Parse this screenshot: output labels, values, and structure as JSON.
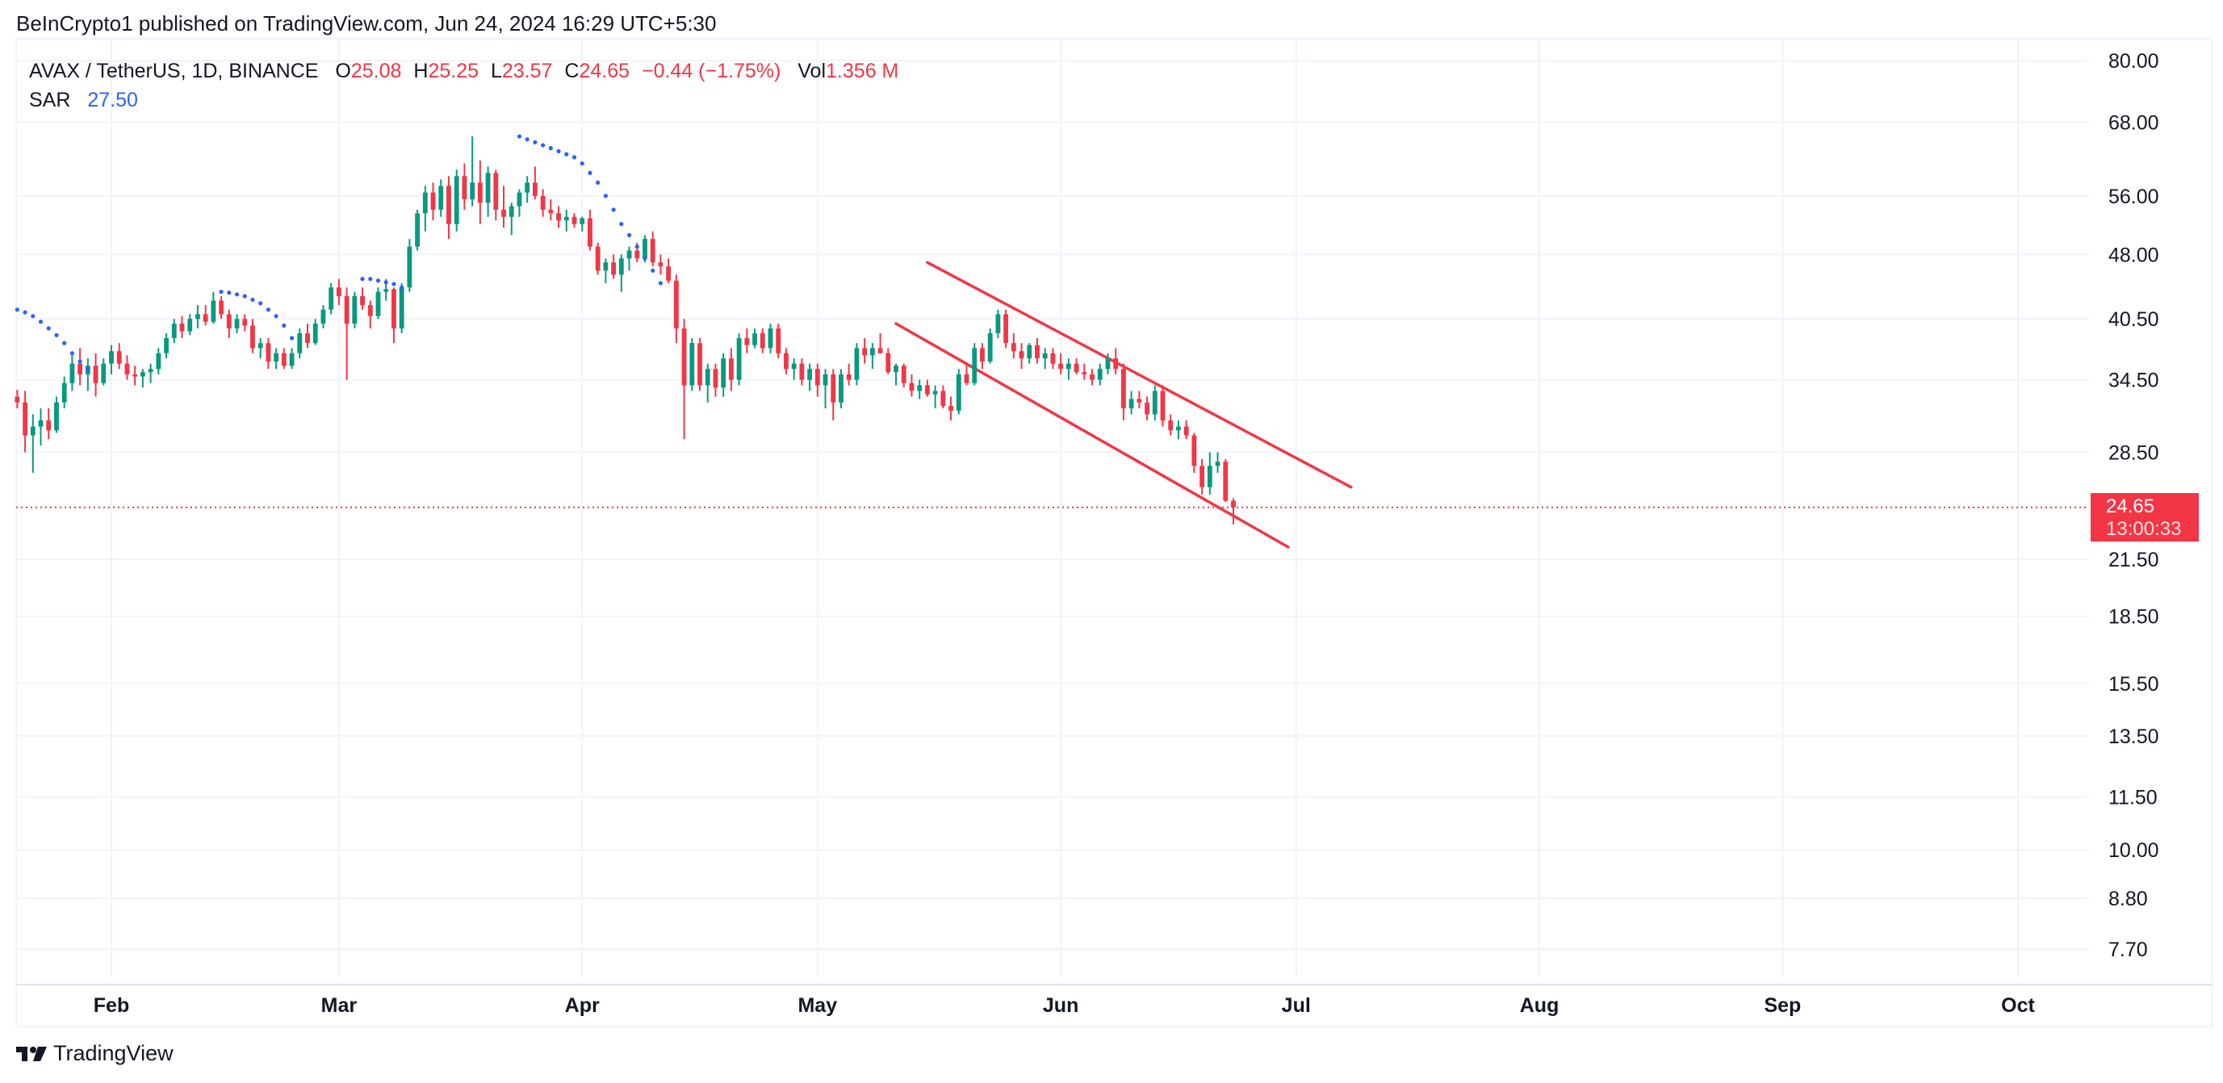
{
  "header": {
    "published_by": "BeInCrypto1 published on TradingView.com, Jun 24, 2024 16:29 UTC+5:30"
  },
  "legend": {
    "symbol": "AVAX / TetherUS, 1D, BINANCE",
    "open_label": "O",
    "open": "25.08",
    "high_label": "H",
    "high": "25.25",
    "low_label": "L",
    "low": "23.57",
    "close_label": "C",
    "close": "24.65",
    "change": "−0.44 (−1.75%)",
    "vol_label": "Vol",
    "vol": "1.356 M",
    "sar_label": "SAR",
    "sar": "27.50"
  },
  "price_tag": {
    "price": "24.65",
    "countdown": "13:00:33"
  },
  "footer": {
    "brand": "TradingView"
  },
  "colors": {
    "up": "#089981",
    "down": "#f23645",
    "sar": "#2962ff",
    "channel": "#f23645",
    "grid": "#f0f3fa"
  },
  "chart_data": {
    "type": "candlestick",
    "symbol": "AVAX / TetherUS",
    "interval": "1D",
    "y_scale": "log",
    "y_ticks": [
      80.0,
      68.0,
      56.0,
      48.0,
      40.5,
      34.5,
      28.5,
      21.5,
      18.5,
      15.5,
      13.5,
      11.5,
      10.0,
      8.8,
      7.7
    ],
    "y_tick_labels": [
      "80.00",
      "68.00",
      "56.00",
      "48.00",
      "40.50",
      "34.50",
      "28.50",
      "21.50",
      "18.50",
      "15.50",
      "13.50",
      "11.50",
      "10.00",
      "8.80",
      "7.70"
    ],
    "x_tick_labels": [
      "Feb",
      "Mar",
      "Apr",
      "May",
      "Jun",
      "Jul",
      "Aug",
      "Sep",
      "Oct"
    ],
    "x_tick_dates": [
      "2024-02-01",
      "2024-03-01",
      "2024-04-01",
      "2024-05-01",
      "2024-06-01",
      "2024-07-01",
      "2024-08-01",
      "2024-09-01",
      "2024-10-01"
    ],
    "x_range": [
      "2024-01-20",
      "2024-10-20"
    ],
    "last_price": 24.65,
    "candles_start": "2024-01-20",
    "candles_ohlc": [
      [
        33.0,
        33.6,
        32.0,
        32.5
      ],
      [
        32.5,
        33.5,
        28.5,
        29.8
      ],
      [
        29.8,
        31.5,
        27.0,
        30.5
      ],
      [
        30.5,
        32.0,
        29.0,
        31.0
      ],
      [
        31.0,
        32.0,
        29.5,
        30.2
      ],
      [
        30.2,
        33.0,
        30.0,
        32.5
      ],
      [
        32.5,
        34.8,
        32.0,
        34.2
      ],
      [
        34.2,
        36.8,
        33.5,
        36.0
      ],
      [
        36.0,
        37.5,
        34.0,
        35.0
      ],
      [
        35.0,
        36.5,
        33.5,
        35.8
      ],
      [
        35.8,
        37.0,
        33.0,
        34.2
      ],
      [
        34.2,
        36.5,
        34.0,
        36.0
      ],
      [
        36.0,
        37.8,
        35.0,
        37.2
      ],
      [
        37.2,
        38.0,
        35.5,
        36.0
      ],
      [
        36.0,
        36.8,
        34.5,
        35.0
      ],
      [
        35.0,
        35.8,
        34.0,
        34.8
      ],
      [
        34.8,
        35.5,
        33.8,
        35.2
      ],
      [
        35.2,
        36.0,
        34.2,
        35.5
      ],
      [
        35.5,
        37.5,
        35.0,
        37.0
      ],
      [
        37.0,
        39.0,
        36.5,
        38.5
      ],
      [
        38.5,
        40.5,
        38.0,
        40.0
      ],
      [
        40.0,
        40.8,
        38.5,
        39.2
      ],
      [
        39.2,
        41.0,
        38.8,
        40.5
      ],
      [
        40.5,
        42.0,
        39.5,
        41.0
      ],
      [
        41.0,
        42.0,
        39.8,
        40.2
      ],
      [
        40.2,
        43.5,
        40.0,
        42.5
      ],
      [
        42.5,
        43.0,
        40.5,
        41.0
      ],
      [
        41.0,
        41.5,
        38.5,
        39.5
      ],
      [
        39.5,
        41.0,
        39.0,
        40.5
      ],
      [
        40.5,
        41.0,
        39.2,
        39.8
      ],
      [
        39.8,
        40.5,
        37.0,
        37.5
      ],
      [
        37.5,
        38.5,
        36.5,
        38.0
      ],
      [
        38.0,
        38.5,
        35.5,
        36.2
      ],
      [
        36.2,
        37.5,
        35.5,
        37.0
      ],
      [
        37.0,
        37.5,
        35.5,
        35.8
      ],
      [
        35.8,
        37.5,
        35.5,
        37.0
      ],
      [
        37.0,
        39.5,
        36.5,
        39.0
      ],
      [
        39.0,
        40.0,
        37.5,
        38.0
      ],
      [
        38.0,
        40.5,
        37.8,
        40.0
      ],
      [
        40.0,
        42.0,
        39.5,
        41.5
      ],
      [
        41.5,
        44.5,
        41.0,
        44.0
      ],
      [
        44.0,
        45.0,
        42.0,
        43.0
      ],
      [
        43.0,
        44.0,
        34.5,
        40.0
      ],
      [
        40.0,
        43.5,
        39.5,
        43.0
      ],
      [
        43.0,
        44.0,
        41.5,
        42.0
      ],
      [
        42.0,
        42.5,
        39.5,
        40.8
      ],
      [
        40.8,
        44.0,
        40.5,
        43.5
      ],
      [
        43.5,
        45.0,
        42.5,
        43.8
      ],
      [
        43.8,
        44.0,
        38.0,
        39.5
      ],
      [
        39.5,
        44.5,
        39.0,
        44.0
      ],
      [
        44.0,
        50.0,
        43.5,
        49.0
      ],
      [
        49.0,
        54.0,
        48.5,
        53.5
      ],
      [
        53.5,
        57.5,
        51.0,
        56.5
      ],
      [
        56.5,
        58.0,
        52.5,
        54.0
      ],
      [
        54.0,
        58.5,
        53.0,
        57.5
      ],
      [
        57.5,
        59.0,
        50.0,
        52.0
      ],
      [
        52.0,
        60.0,
        51.0,
        59.0
      ],
      [
        59.0,
        61.0,
        54.0,
        55.5
      ],
      [
        55.5,
        65.5,
        54.5,
        58.0
      ],
      [
        58.0,
        61.5,
        52.0,
        55.0
      ],
      [
        55.0,
        60.5,
        53.0,
        59.5
      ],
      [
        59.5,
        60.0,
        52.5,
        54.0
      ],
      [
        54.0,
        57.5,
        51.5,
        53.0
      ],
      [
        53.0,
        55.0,
        50.5,
        54.5
      ],
      [
        54.5,
        57.0,
        53.0,
        56.5
      ],
      [
        56.5,
        59.0,
        55.0,
        58.0
      ],
      [
        58.0,
        60.5,
        55.5,
        56.0
      ],
      [
        56.0,
        57.0,
        53.0,
        54.0
      ],
      [
        54.0,
        55.5,
        52.5,
        53.5
      ],
      [
        53.5,
        54.5,
        51.5,
        52.5
      ],
      [
        52.5,
        54.0,
        51.0,
        53.0
      ],
      [
        53.0,
        53.5,
        51.5,
        52.0
      ],
      [
        52.0,
        53.0,
        51.0,
        52.8
      ],
      [
        52.8,
        54.0,
        48.5,
        49.0
      ],
      [
        49.0,
        49.5,
        45.5,
        46.0
      ],
      [
        46.0,
        47.5,
        44.5,
        47.0
      ],
      [
        47.0,
        48.0,
        45.0,
        45.5
      ],
      [
        45.5,
        48.0,
        43.5,
        47.5
      ],
      [
        47.5,
        49.0,
        46.0,
        48.5
      ],
      [
        48.5,
        49.5,
        47.0,
        47.5
      ],
      [
        47.5,
        50.5,
        47.0,
        50.0
      ],
      [
        50.0,
        51.0,
        46.5,
        47.0
      ],
      [
        47.0,
        48.0,
        45.5,
        46.5
      ],
      [
        46.5,
        47.5,
        44.5,
        44.8
      ],
      [
        44.8,
        45.5,
        38.0,
        39.5
      ],
      [
        39.5,
        40.5,
        29.5,
        34.0
      ],
      [
        34.0,
        38.5,
        33.5,
        38.0
      ],
      [
        38.0,
        38.5,
        33.5,
        34.0
      ],
      [
        34.0,
        36.0,
        32.5,
        35.5
      ],
      [
        35.5,
        36.0,
        33.0,
        33.8
      ],
      [
        33.8,
        37.0,
        33.0,
        36.5
      ],
      [
        36.5,
        37.5,
        33.5,
        34.5
      ],
      [
        34.5,
        39.0,
        34.0,
        38.5
      ],
      [
        38.5,
        39.5,
        37.0,
        37.8
      ],
      [
        37.8,
        39.5,
        37.5,
        39.0
      ],
      [
        39.0,
        39.5,
        37.0,
        37.5
      ],
      [
        37.5,
        40.0,
        37.0,
        39.5
      ],
      [
        39.5,
        40.0,
        36.5,
        37.0
      ],
      [
        37.0,
        37.5,
        35.0,
        35.5
      ],
      [
        35.5,
        36.5,
        34.5,
        36.0
      ],
      [
        36.0,
        36.5,
        34.0,
        34.5
      ],
      [
        34.5,
        36.0,
        33.5,
        35.5
      ],
      [
        35.5,
        36.0,
        33.0,
        34.0
      ],
      [
        34.0,
        35.5,
        32.0,
        35.0
      ],
      [
        35.0,
        35.5,
        31.0,
        32.5
      ],
      [
        32.5,
        35.5,
        32.0,
        35.0
      ],
      [
        35.0,
        36.0,
        34.0,
        34.5
      ],
      [
        34.5,
        38.0,
        34.0,
        37.5
      ],
      [
        37.5,
        38.5,
        36.0,
        36.8
      ],
      [
        36.8,
        38.0,
        35.5,
        37.5
      ],
      [
        37.5,
        39.0,
        37.0,
        37.0
      ],
      [
        37.0,
        37.5,
        35.0,
        35.2
      ],
      [
        35.2,
        36.0,
        34.0,
        35.8
      ],
      [
        35.8,
        36.0,
        33.8,
        34.2
      ],
      [
        34.2,
        35.0,
        33.0,
        33.5
      ],
      [
        33.5,
        34.5,
        32.8,
        34.0
      ],
      [
        34.0,
        34.5,
        33.0,
        33.2
      ],
      [
        33.2,
        34.0,
        32.0,
        33.5
      ],
      [
        33.5,
        34.0,
        32.0,
        32.2
      ],
      [
        32.2,
        33.0,
        31.0,
        31.8
      ],
      [
        31.8,
        35.5,
        31.5,
        35.0
      ],
      [
        35.0,
        36.0,
        34.0,
        34.2
      ],
      [
        34.2,
        38.0,
        34.0,
        37.5
      ],
      [
        37.5,
        38.0,
        35.5,
        36.2
      ],
      [
        36.2,
        39.5,
        36.0,
        39.0
      ],
      [
        39.0,
        41.5,
        38.5,
        41.0
      ],
      [
        41.0,
        41.5,
        37.5,
        38.0
      ],
      [
        38.0,
        39.0,
        36.5,
        37.2
      ],
      [
        37.2,
        38.0,
        35.5,
        36.5
      ],
      [
        36.5,
        38.0,
        36.0,
        37.8
      ],
      [
        37.8,
        38.5,
        36.0,
        36.5
      ],
      [
        36.5,
        37.5,
        35.5,
        37.0
      ],
      [
        37.0,
        37.5,
        35.5,
        36.0
      ],
      [
        36.0,
        37.0,
        35.0,
        35.5
      ],
      [
        35.5,
        36.5,
        34.5,
        36.0
      ],
      [
        36.0,
        36.5,
        35.0,
        35.2
      ],
      [
        35.2,
        36.0,
        34.5,
        35.0
      ],
      [
        35.0,
        35.5,
        34.0,
        34.5
      ],
      [
        34.5,
        36.0,
        34.0,
        35.5
      ],
      [
        35.5,
        37.0,
        35.0,
        36.5
      ],
      [
        36.5,
        37.5,
        35.0,
        35.5
      ],
      [
        35.5,
        36.0,
        31.0,
        32.0
      ],
      [
        32.0,
        33.5,
        31.5,
        32.8
      ],
      [
        32.8,
        33.5,
        32.0,
        32.5
      ],
      [
        32.5,
        33.0,
        31.0,
        31.5
      ],
      [
        31.5,
        34.0,
        31.0,
        33.5
      ],
      [
        33.5,
        34.0,
        30.5,
        31.0
      ],
      [
        31.0,
        31.5,
        29.8,
        30.2
      ],
      [
        30.2,
        31.0,
        29.5,
        30.5
      ],
      [
        30.5,
        31.0,
        29.5,
        29.8
      ],
      [
        29.8,
        30.0,
        27.0,
        27.5
      ],
      [
        27.5,
        28.0,
        25.5,
        26.0
      ],
      [
        26.0,
        28.5,
        25.5,
        27.5
      ],
      [
        27.5,
        28.5,
        27.0,
        27.8
      ],
      [
        27.8,
        28.0,
        25.0,
        25.08
      ],
      [
        25.08,
        25.25,
        23.57,
        24.65
      ]
    ],
    "sar_start": "2024-01-20",
    "sar": [
      41.5,
      41.2,
      40.8,
      40.2,
      39.5,
      38.8,
      38.0,
      37.0,
      36.2,
      35.5,
      null,
      null,
      null,
      null,
      null,
      null,
      null,
      null,
      null,
      null,
      null,
      null,
      null,
      null,
      null,
      null,
      43.5,
      43.4,
      43.2,
      43.0,
      42.6,
      42.2,
      41.5,
      40.8,
      39.8,
      38.5,
      null,
      null,
      null,
      null,
      null,
      null,
      null,
      null,
      45.0,
      45.0,
      44.8,
      44.6,
      44.4,
      44.0,
      null,
      null,
      null,
      null,
      null,
      null,
      null,
      null,
      null,
      null,
      null,
      null,
      null,
      null,
      65.5,
      65.0,
      64.5,
      64.0,
      63.5,
      63.0,
      62.5,
      62.0,
      61.0,
      59.5,
      58.0,
      56.0,
      54.0,
      52.0,
      50.5,
      49.0,
      47.5,
      46.0,
      44.5,
      null,
      null,
      null,
      null,
      null,
      null,
      null,
      null,
      null,
      null,
      null,
      null,
      null,
      null,
      null,
      null,
      null,
      null,
      null,
      null,
      null,
      null,
      null,
      null,
      null,
      null,
      null,
      null,
      null,
      null,
      null,
      null,
      null,
      null,
      null,
      null,
      null,
      null,
      null,
      null,
      null,
      null,
      null,
      null,
      null,
      null,
      null,
      null,
      null,
      null,
      null,
      null,
      null,
      null,
      null,
      null,
      null,
      null,
      null,
      null,
      null,
      null,
      null,
      null,
      null,
      null,
      null,
      null,
      null,
      null,
      null,
      null,
      null,
      null,
      null,
      null,
      null,
      null,
      null,
      null,
      null,
      null,
      null,
      null,
      null,
      null,
      null,
      null,
      null,
      null,
      null,
      null
    ],
    "channel_lines": [
      {
        "from": [
          "2024-05-15",
          47.0
        ],
        "to": [
          "2024-07-08",
          26.0
        ]
      },
      {
        "from": [
          "2024-05-11",
          40.0
        ],
        "to": [
          "2024-06-30",
          22.2
        ]
      }
    ]
  }
}
